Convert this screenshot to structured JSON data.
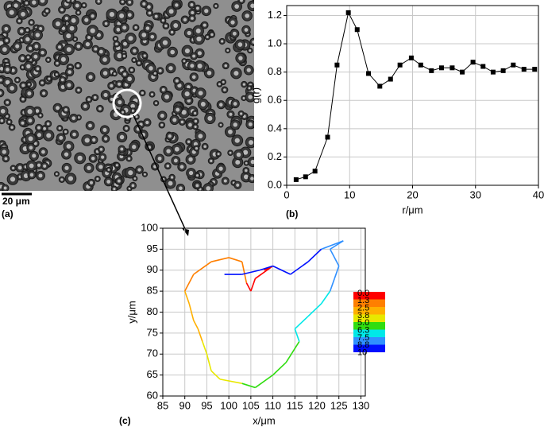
{
  "chart_data": [
    {
      "type": "image",
      "panel_label": "(a)",
      "scale_bar": "20 μm"
    },
    {
      "type": "line",
      "panel_label": "(b)",
      "xlabel": "r/μm",
      "ylabel": "g(r)",
      "color": "#000000",
      "grid": true,
      "x": [
        1.5,
        3,
        4.5,
        6.5,
        8,
        9.8,
        11.2,
        13,
        14.8,
        16.5,
        18,
        19.8,
        21.3,
        23,
        24.6,
        26.3,
        27.9,
        29.6,
        31.2,
        32.8,
        34.4,
        36,
        37.7,
        39.4
      ],
      "values": [
        0.04,
        0.06,
        0.1,
        0.34,
        0.85,
        1.22,
        1.1,
        0.79,
        0.7,
        0.75,
        0.85,
        0.9,
        0.85,
        0.81,
        0.83,
        0.83,
        0.8,
        0.87,
        0.84,
        0.8,
        0.81,
        0.85,
        0.82,
        0.82
      ],
      "xlim": [
        0,
        40
      ],
      "xticks": [
        0,
        10,
        20,
        30,
        40
      ],
      "ylim": [
        0,
        1.27
      ],
      "yticks": [
        {
          "value": 0,
          "label": "0.0"
        },
        {
          "value": 0.2,
          "label": "0.2"
        },
        {
          "value": 0.4,
          "label": "0.4"
        },
        {
          "value": 0.6,
          "label": "0.6"
        },
        {
          "value": 0.8,
          "label": "0.8"
        },
        {
          "value": 1.0,
          "label": "1.0"
        },
        {
          "value": 1.2,
          "label": "1.2"
        }
      ]
    },
    {
      "type": "trajectory",
      "panel_label": "(c)",
      "xlabel": "x/μm",
      "ylabel": "y/μm",
      "grid": true,
      "x": [
        108,
        110,
        106,
        105,
        104,
        103,
        100,
        96,
        92,
        90,
        91,
        92,
        93,
        94,
        95,
        96,
        98,
        103,
        106,
        110,
        113,
        116,
        115,
        118,
        121,
        123,
        124,
        125,
        123,
        126,
        121,
        118,
        114,
        110,
        107,
        103,
        99
      ],
      "y": [
        90,
        91,
        88,
        85,
        87,
        92,
        93,
        92,
        89,
        85,
        82,
        78,
        76,
        73,
        70,
        66,
        64,
        63,
        62,
        65,
        68,
        73,
        76,
        79,
        82,
        85,
        88,
        91,
        95,
        97,
        95,
        92,
        89,
        91,
        90,
        89,
        89
      ],
      "t": [
        0,
        0.4,
        0.8,
        1.1,
        1.3,
        1.6,
        1.9,
        2.1,
        2.3,
        2.5,
        2.8,
        3.1,
        3.5,
        3.8,
        4.1,
        4.5,
        4.8,
        5.0,
        5.3,
        5.7,
        6.0,
        6.3,
        6.6,
        6.9,
        7.2,
        7.5,
        7.8,
        8.1,
        8.4,
        8.6,
        8.8,
        9.0,
        9.2,
        9.4,
        9.6,
        9.8,
        10
      ],
      "xlim": [
        85,
        131
      ],
      "xticks": [
        85,
        90,
        95,
        100,
        105,
        110,
        115,
        120,
        125,
        130
      ],
      "ylim": [
        60,
        100
      ],
      "yticks": [
        60,
        65,
        70,
        75,
        80,
        85,
        90,
        95,
        100
      ],
      "colorbar": {
        "ticks": [
          {
            "value": 0,
            "label": "0.0"
          },
          {
            "value": 1.3,
            "label": "1.3"
          },
          {
            "value": 2.5,
            "label": "2.5"
          },
          {
            "value": 3.8,
            "label": "3.8"
          },
          {
            "value": 5.0,
            "label": "5.0"
          },
          {
            "value": 6.3,
            "label": "6.3"
          },
          {
            "value": 7.5,
            "label": "7.5"
          },
          {
            "value": 8.8,
            "label": "8.8"
          },
          10
        ],
        "colors": [
          "#ff0000",
          "#ff7f00",
          "#ffb000",
          "#e8e800",
          "#30dd10",
          "#00e8e8",
          "#3090ff",
          "#0010ff"
        ]
      }
    }
  ]
}
